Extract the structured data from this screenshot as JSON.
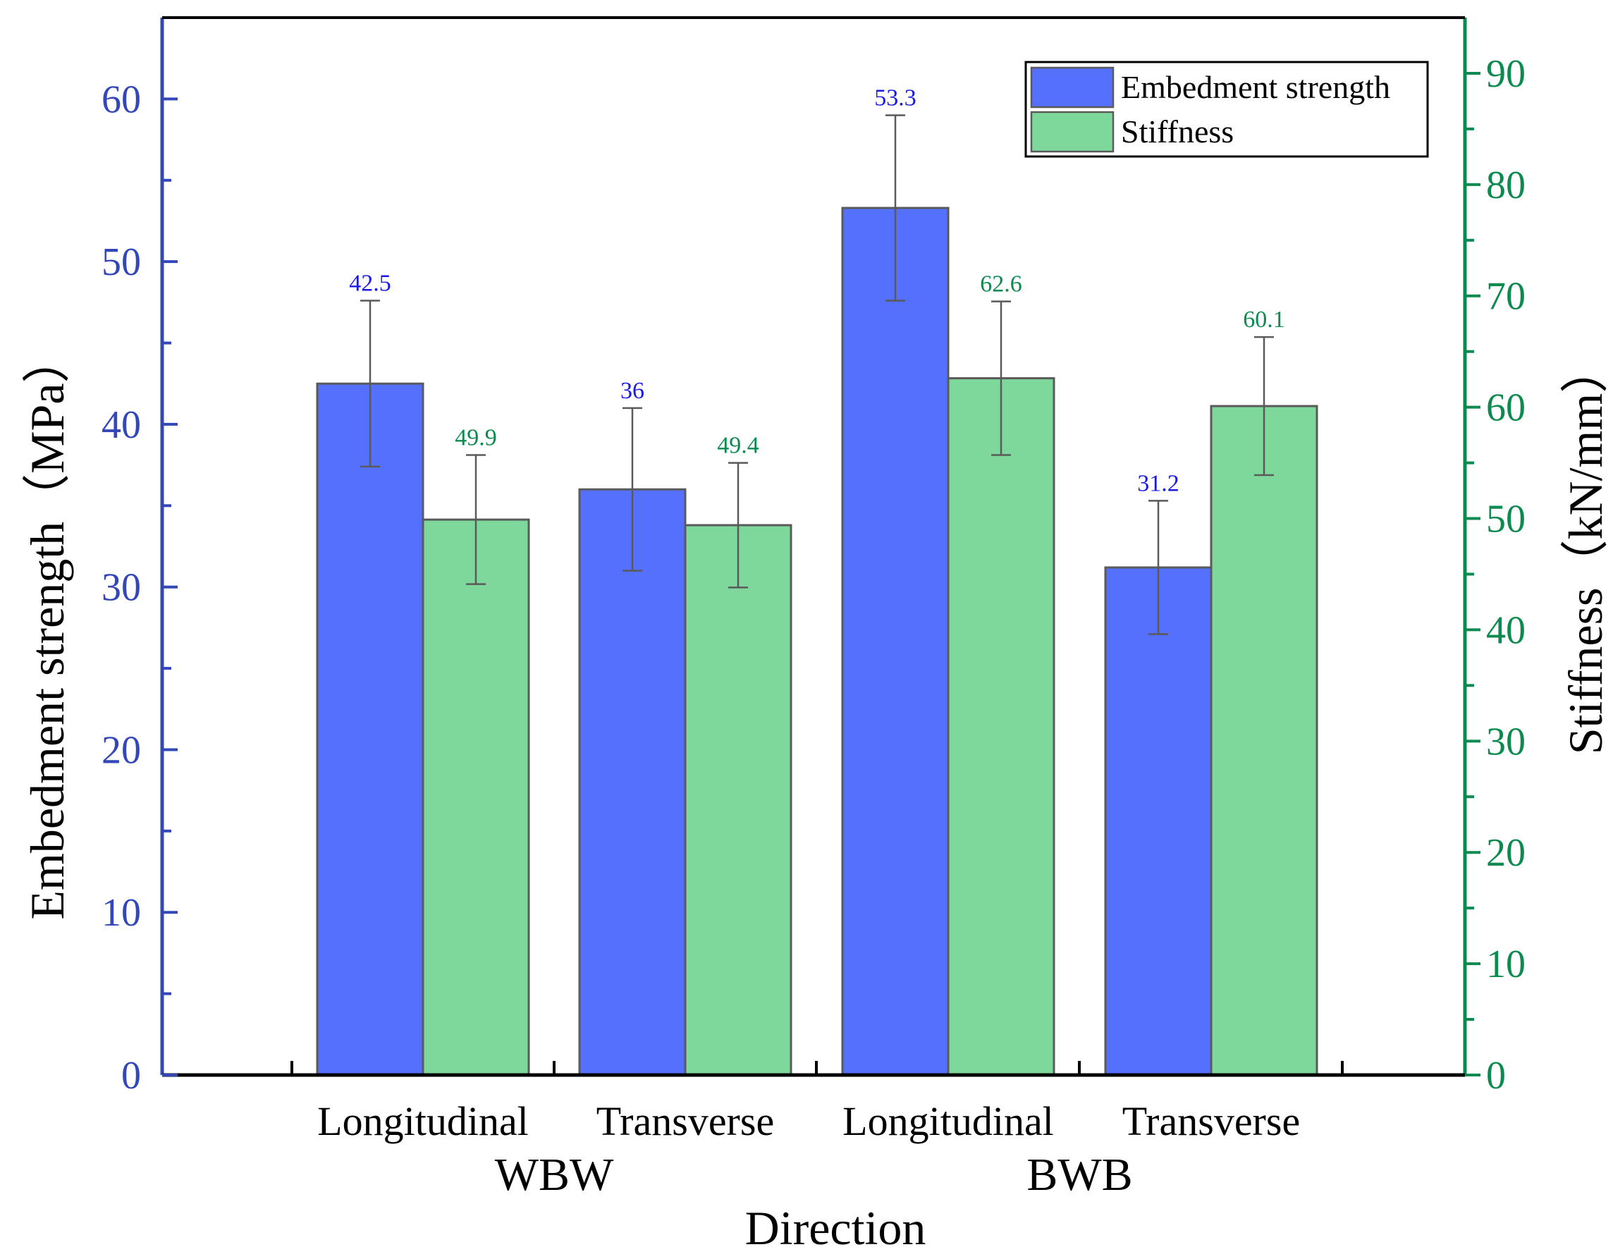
{
  "chart_data": {
    "type": "bar",
    "xlabel": "Direction",
    "ylabel_left": "Embedment strength（MPa）",
    "ylabel_right": "Stiffness（kN/mm）",
    "ylim_left": [
      0,
      65
    ],
    "ylim_right": [
      0,
      95
    ],
    "yticks_left": [
      "0",
      "10",
      "20",
      "30",
      "40",
      "50",
      "60"
    ],
    "yticks_right": [
      "0",
      "10",
      "20",
      "30",
      "40",
      "50",
      "60",
      "70",
      "80",
      "90"
    ],
    "grid": false,
    "legend_position": "top-right",
    "groups": [
      {
        "label": "WBW",
        "categories": [
          "Longitudinal",
          "Transverse"
        ]
      },
      {
        "label": "BWB",
        "categories": [
          "Longitudinal",
          "Transverse"
        ]
      }
    ],
    "categories": [
      "Longitudinal",
      "Transverse",
      "Longitudinal",
      "Transverse"
    ],
    "series": [
      {
        "name": "Embedment strength",
        "axis": "left",
        "color": "#5470fc",
        "label_color": "#1a1ae6",
        "values": [
          42.5,
          36,
          53.3,
          31.2
        ],
        "value_labels": [
          "42.5",
          "36",
          "53.3",
          "31.2"
        ],
        "error": [
          5.1,
          5.0,
          5.7,
          4.1
        ]
      },
      {
        "name": "Stiffness",
        "axis": "right",
        "color": "#7fd89b",
        "label_color": "#0d8a4f",
        "values": [
          49.9,
          49.4,
          62.6,
          60.1
        ],
        "value_labels": [
          "49.9",
          "49.4",
          "62.6",
          "60.1"
        ],
        "error": [
          5.8,
          5.6,
          6.9,
          6.2
        ]
      }
    ],
    "axis_colors": {
      "left": "#3347b8",
      "right": "#0d8a4f",
      "bottom": "#000000"
    }
  }
}
